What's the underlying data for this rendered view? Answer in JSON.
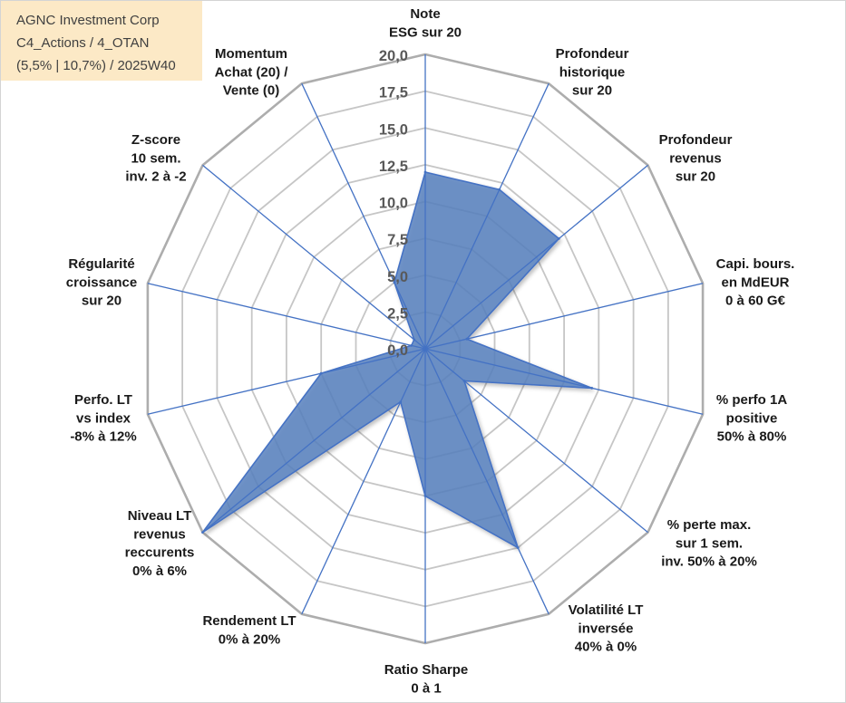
{
  "title_box": {
    "line1": "AGNC Investment Corp",
    "line2": "C4_Actions / 4_OTAN",
    "line3": "(5,5% | 10,7%) / 2025W40"
  },
  "chart_data": {
    "type": "radar",
    "categories": [
      [
        "Note",
        "ESG sur 20"
      ],
      [
        "Profondeur",
        "historique",
        "sur 20"
      ],
      [
        "Profondeur",
        "revenus",
        "sur 20"
      ],
      [
        "Capi. bours.",
        "en MdEUR",
        "0 à 60 G€"
      ],
      [
        "% perfo 1A",
        "positive",
        "50% à 80%"
      ],
      [
        "% perte max.",
        "sur 1 sem.",
        "inv. 50% à 20%"
      ],
      [
        "Volatilité LT",
        "inversée",
        "40% à 0%"
      ],
      [
        "Ratio Sharpe",
        "0 à 1"
      ],
      [
        "Rendement LT",
        "0% à 20%"
      ],
      [
        "Niveau LT",
        "revenus",
        "reccurents",
        "0% à 6%"
      ],
      [
        "Perfo. LT",
        "vs index",
        "-8% à 12%"
      ],
      [
        "Régularité",
        "croissance",
        "sur 20"
      ],
      [
        "Z-score",
        "10 sem.",
        "inv. 2 à -2"
      ],
      [
        "Momentum",
        "Achat (20) /",
        "Vente (0)"
      ]
    ],
    "series": [
      {
        "values": [
          12,
          12,
          12,
          3,
          12,
          3.5,
          15,
          10,
          4,
          20,
          7.5,
          1,
          1,
          5
        ]
      }
    ],
    "rlim": [
      0,
      20
    ],
    "r_ticks": [
      0,
      2.5,
      5,
      7.5,
      10,
      12.5,
      15,
      17.5,
      20
    ],
    "r_tick_labels": [
      "0,0",
      "2,5",
      "5,0",
      "7,5",
      "10,0",
      "12,5",
      "15,0",
      "17,5",
      "20,0"
    ],
    "grid": true,
    "legend": "none",
    "colors": {
      "series_fill": "#5b82c0",
      "series_stroke": "#4472c4",
      "spoke": "#4472c4",
      "grid": "#c6c6c6",
      "grid_outer": "#adadad",
      "title_box_bg": "#fce9c6"
    }
  }
}
